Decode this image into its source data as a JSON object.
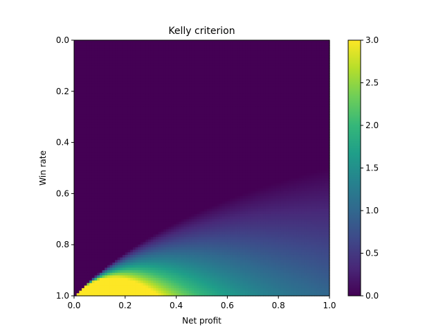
{
  "chart_data": {
    "type": "heatmap",
    "title": "Kelly criterion",
    "xlabel": "Net profit",
    "ylabel": "Win rate",
    "xlim": [
      0.0,
      1.0
    ],
    "ylim": [
      0.0,
      1.0
    ],
    "y_inverted": true,
    "xticks": [
      0.0,
      0.2,
      0.4,
      0.6,
      0.8,
      1.0
    ],
    "xtick_labels": [
      "0.0",
      "0.2",
      "0.4",
      "0.6",
      "0.8",
      "1.0"
    ],
    "yticks": [
      0.0,
      0.2,
      0.4,
      0.6,
      0.8,
      1.0
    ],
    "ytick_labels": [
      "0.0",
      "0.2",
      "0.4",
      "0.6",
      "0.8",
      "1.0"
    ],
    "colormap": "viridis",
    "colorbar": {
      "min": 0.0,
      "max": 3.0,
      "ticks": [
        0.0,
        0.5,
        1.0,
        1.5,
        2.0,
        2.5,
        3.0
      ],
      "tick_labels": [
        "0.0",
        "0.5",
        "1.0",
        "1.5",
        "2.0",
        "2.5",
        "3.0"
      ],
      "colors": [
        "#440154",
        "#482878",
        "#3e4989",
        "#31688e",
        "#26828e",
        "#1f9e89",
        "#35b779",
        "#6ece58",
        "#b5de2b",
        "#fde725"
      ]
    },
    "grid": false,
    "function": "clip(max(0, w - (1 - w) / p) / p, 0, 3)",
    "samples_per_axis": 100
  }
}
